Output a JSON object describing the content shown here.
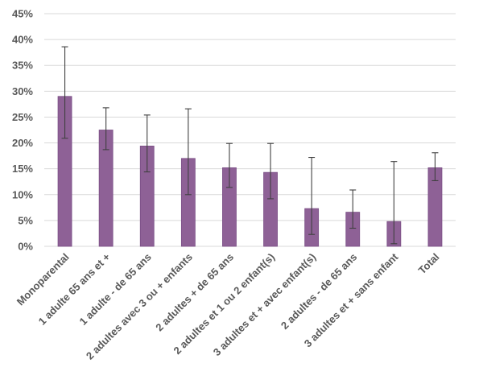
{
  "chart_data": {
    "type": "bar",
    "title": "",
    "xlabel": "",
    "ylabel": "",
    "categories": [
      "Monoparental",
      "1 adulte 65 ans et +",
      "1 adulte - de 65 ans",
      "2 adultes avec 3 ou + enfants",
      "2 adultes + de 65 ans",
      "2 adultes et 1 ou 2 enfant(s)",
      "3 adultes et + avec enfant(s)",
      "2 adultes - de 65 ans",
      "3 adultes et + sans enfant",
      "Total"
    ],
    "values": [
      29.0,
      22.5,
      19.4,
      17.0,
      15.2,
      14.3,
      7.3,
      6.6,
      4.8,
      15.2
    ],
    "error_low": [
      20.9,
      18.7,
      14.4,
      10.0,
      11.4,
      9.2,
      2.3,
      3.5,
      0.5,
      12.7
    ],
    "error_high": [
      38.6,
      26.8,
      25.4,
      26.6,
      19.9,
      19.9,
      17.2,
      10.9,
      16.4,
      18.1
    ],
    "ylim": [
      0,
      45
    ],
    "y_ticks": [
      "0%",
      "5%",
      "10%",
      "15%",
      "20%",
      "25%",
      "30%",
      "35%",
      "40%",
      "45%"
    ],
    "grid": true,
    "colors": {
      "bar": "#8E6196",
      "bar_edge": "#7A4E85",
      "error": "#404040",
      "grid": "#D9D9D9",
      "text": "#595959"
    }
  }
}
